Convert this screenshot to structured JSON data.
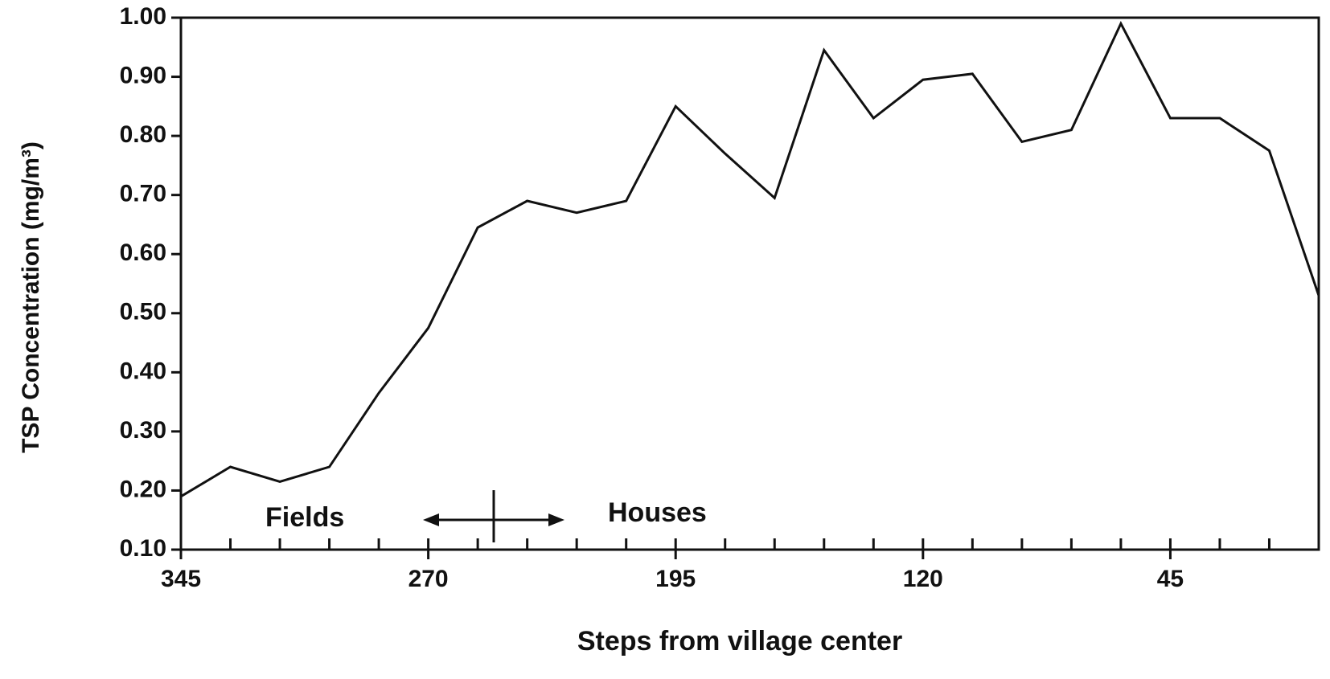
{
  "chart_data": {
    "type": "line",
    "xlabel": "Steps from village center",
    "ylabel": "TSP Concentration (mg/m³)",
    "annotations": [
      "Fields",
      "Houses"
    ],
    "x": [
      345,
      330,
      315,
      300,
      285,
      270,
      255,
      240,
      225,
      210,
      195,
      180,
      165,
      150,
      135,
      120,
      105,
      90,
      75,
      60,
      45,
      30,
      15,
      0
    ],
    "series": [
      {
        "name": "TSP",
        "color": "#111111",
        "values": [
          0.19,
          0.24,
          0.215,
          0.24,
          0.365,
          0.475,
          0.645,
          0.69,
          0.67,
          0.69,
          0.85,
          0.77,
          0.695,
          0.945,
          0.83,
          0.895,
          0.905,
          0.79,
          0.81,
          0.99,
          0.83,
          0.83,
          0.775,
          0.53
        ]
      }
    ],
    "xlim": [
      345,
      0
    ],
    "xticks": [
      345,
      270,
      195,
      120,
      45
    ],
    "xminorticks": [
      330,
      315,
      300,
      285,
      255,
      240,
      225,
      210,
      180,
      165,
      150,
      135,
      105,
      90,
      75,
      60,
      30,
      15
    ],
    "ylim": [
      0.1,
      1.0
    ],
    "yticks": [
      {
        "value": 0.1,
        "label": "0.10"
      },
      {
        "value": 0.2,
        "label": "0.20"
      },
      {
        "value": 0.3,
        "label": "0.30"
      },
      {
        "value": 0.4,
        "label": "0.40"
      },
      {
        "value": 0.5,
        "label": "0.50"
      },
      {
        "value": 0.6,
        "label": "0.60"
      },
      {
        "value": 0.7,
        "label": "0.70"
      },
      {
        "value": 0.8,
        "label": "0.80"
      },
      {
        "value": 0.9,
        "label": "0.90"
      },
      {
        "value": 1.0,
        "label": "1.00"
      }
    ],
    "grid": false
  }
}
